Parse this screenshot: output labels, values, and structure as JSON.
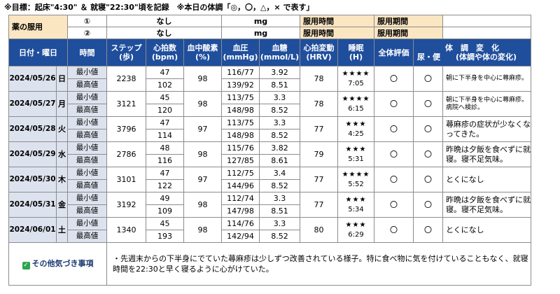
{
  "goal": "※目標：起床\"4:30\" ＆ 就寝\"22:30\"頃を記録　※本日の体調「◎，〇，△，× で表す」",
  "medication": {
    "label": "薬の服用",
    "rows": [
      {
        "num": "①",
        "name": "なし",
        "unit": "mg",
        "time_label": "服用時間",
        "period_label": "服用期間"
      },
      {
        "num": "②",
        "name": "なし",
        "unit": "mg",
        "time_label": "服用時間",
        "period_label": "服用期間"
      }
    ]
  },
  "headers": {
    "date": "日付・曜日",
    "time": "時間",
    "steps": [
      "ステップ",
      "(歩)"
    ],
    "heart_rate": [
      "心拍数",
      "(bpm)"
    ],
    "spo2": [
      "血中酸素",
      "(%)"
    ],
    "bp": [
      "血圧",
      "(mmHg)"
    ],
    "glucose": [
      "血糖",
      "(mmol/L)"
    ],
    "hrv": [
      "心拍変動",
      "(HRV)"
    ],
    "sleep": [
      "睡眠",
      "(H)"
    ],
    "overall": "全体評価",
    "condition_title": "体　調　変　化",
    "urine": "尿・便",
    "condition_note": "(体調や体の変化)"
  },
  "row_labels": {
    "min": "最小値",
    "max": "最高値"
  },
  "days": [
    {
      "date": "2024/05/26",
      "dow": "日",
      "steps": "2238",
      "hr_min": "47",
      "hr_max": "102",
      "spo2": "98",
      "bp_min": "116/77",
      "bp_max": "139/92",
      "glu_min": "3.92",
      "glu_max": "8.51",
      "hrv": "78",
      "stars": "★★★★",
      "sleep": "7:05",
      "overall": "〇",
      "urine": "〇",
      "note": "朝に下半身を中心に蕁麻疹。",
      "note_small": true
    },
    {
      "date": "2024/05/27",
      "dow": "月",
      "steps": "3121",
      "hr_min": "45",
      "hr_max": "120",
      "spo2": "98",
      "bp_min": "113/75",
      "bp_max": "148/98",
      "glu_min": "3.3",
      "glu_max": "8.52",
      "hrv": "78",
      "stars": "★★★★",
      "sleep": "6:15",
      "overall": "〇",
      "urine": "〇",
      "note": "朝に下半身を中心に蕁麻疹。病院へ検診。",
      "note_small": true
    },
    {
      "date": "2024/05/28",
      "dow": "火",
      "steps": "3796",
      "hr_min": "47",
      "hr_max": "114",
      "spo2": "97",
      "bp_min": "113/75",
      "bp_max": "148/98",
      "glu_min": "3.3",
      "glu_max": "8.52",
      "hrv": "77",
      "stars": "★★★",
      "sleep": "4:25",
      "overall": "〇",
      "urine": "〇",
      "note": "蕁麻疹の症状が少なくなってきた。",
      "note_small": false
    },
    {
      "date": "2024/05/29",
      "dow": "水",
      "steps": "2786",
      "hr_min": "48",
      "hr_max": "116",
      "spo2": "98",
      "bp_min": "115/76",
      "bp_max": "127/85",
      "glu_min": "3.82",
      "glu_max": "8.61",
      "hrv": "79",
      "stars": "★★★",
      "sleep": "5:31",
      "overall": "〇",
      "urine": "〇",
      "note": "昨晩は夕飯を食べずに就寝。寝不足気味。",
      "note_small": false
    },
    {
      "date": "2024/05/30",
      "dow": "木",
      "steps": "3101",
      "hr_min": "47",
      "hr_max": "122",
      "spo2": "97",
      "bp_min": "112/75",
      "bp_max": "144/96",
      "glu_min": "3.4",
      "glu_max": "8.52",
      "hrv": "77",
      "stars": "★★★★",
      "sleep": "5:52",
      "overall": "〇",
      "urine": "〇",
      "note": "とくになし",
      "note_small": false
    },
    {
      "date": "2024/05/31",
      "dow": "金",
      "steps": "3192",
      "hr_min": "49",
      "hr_max": "109",
      "spo2": "98",
      "bp_min": "112/74",
      "bp_max": "147/98",
      "glu_min": "3.3",
      "glu_max": "8.51",
      "hrv": "77",
      "stars": "★★★",
      "sleep": "5:34",
      "overall": "〇",
      "urine": "〇",
      "note": "昨晩は夕飯を食べずに就寝。寝不足気味。",
      "note_small": false
    },
    {
      "date": "2024/06/01",
      "dow": "土",
      "steps": "1340",
      "hr_min": "45",
      "hr_max": "193",
      "spo2": "98",
      "bp_min": "114/76",
      "bp_max": "142/94",
      "glu_min": "3.3",
      "glu_max": "8.52",
      "hrv": "80",
      "stars": "★★★",
      "sleep": "6:29",
      "overall": "〇",
      "urine": "〇",
      "note": "とくになし",
      "note_small": false
    }
  ],
  "other": {
    "label": "その他気づき事項",
    "check_icon": "check-box-icon",
    "check_color": "#2ea44f",
    "text": "・先週末からの下半身にでていた蕁麻疹は少しずつ改善されている様子。特に食べ物に気を付けていることもなく、就寝時間を22:30と早く寝るように心がけていた。"
  },
  "colors": {
    "header_bg": "#1f4e9c",
    "med_bg": "#fbe6c2",
    "label_bg": "#dde3ee"
  }
}
